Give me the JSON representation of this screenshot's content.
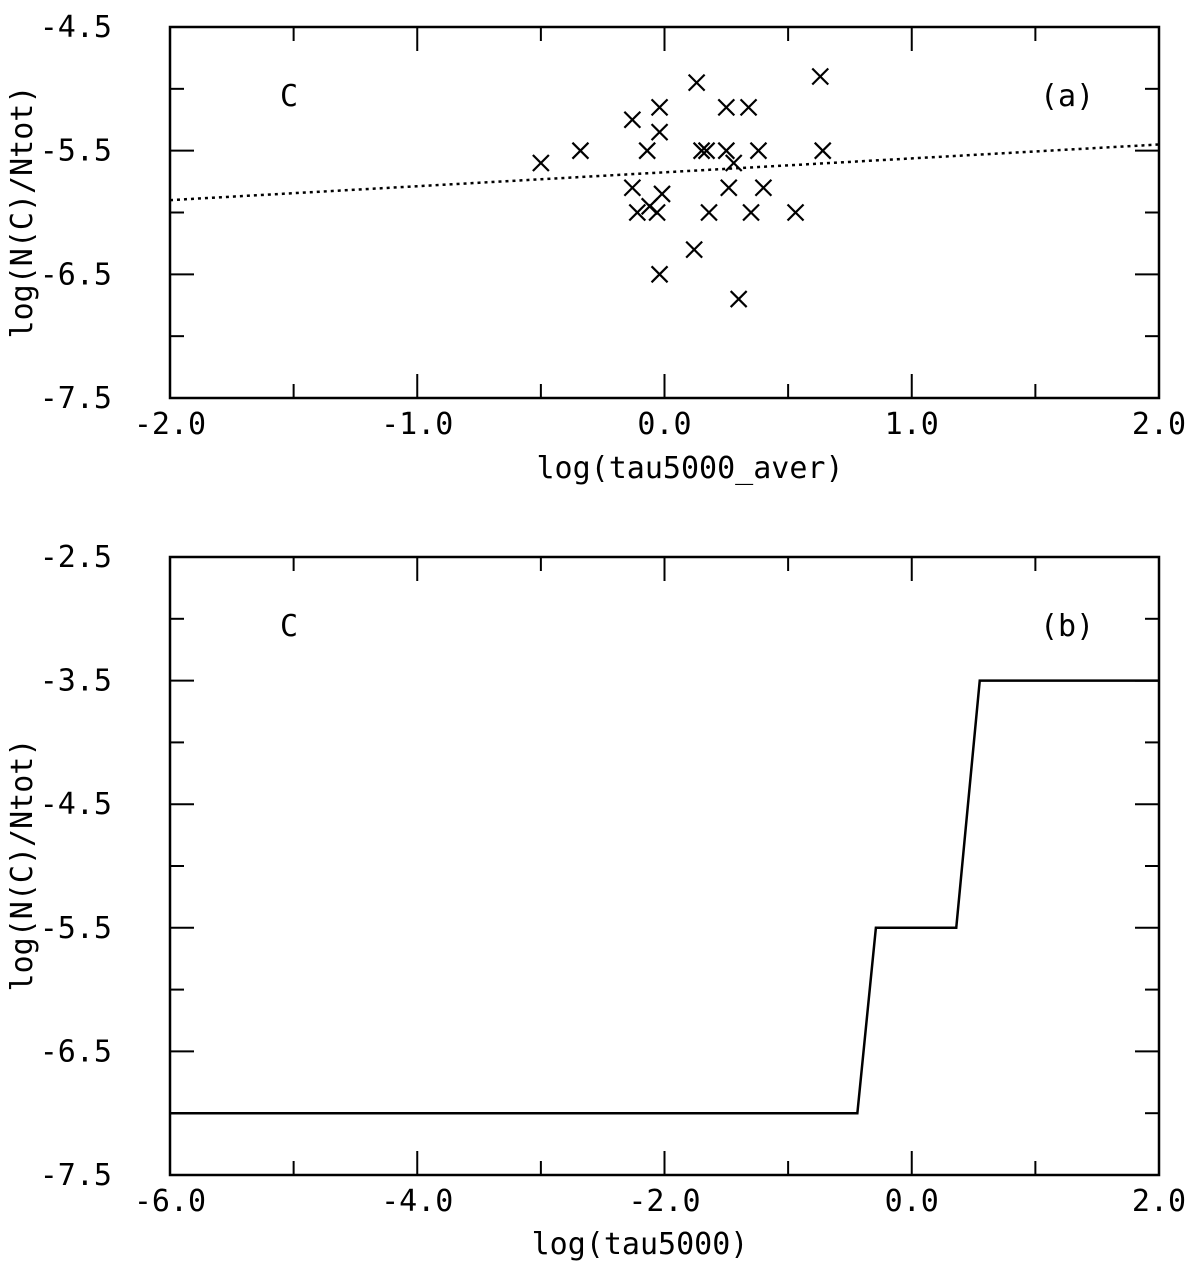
{
  "chart_data": [
    {
      "panel": "a",
      "type": "scatter",
      "element": "C",
      "panel_label": "(a)",
      "xlabel": "log(tau5000_aver)",
      "ylabel": "log(N(C)/Ntot)",
      "xlim": [
        -2.0,
        2.0
      ],
      "ylim": [
        -7.5,
        -4.5
      ],
      "xticks": [
        "-2.0",
        "-1.0",
        "0.0",
        "1.0",
        "2.0"
      ],
      "yticks": [
        "-4.5",
        "-5.5",
        "-6.5",
        "-7.5"
      ],
      "grid": false,
      "series": [
        {
          "marker": "x",
          "points": [
            [
              -0.5,
              -5.6
            ],
            [
              -0.34,
              -5.5
            ],
            [
              -0.13,
              -5.25
            ],
            [
              -0.13,
              -5.8
            ],
            [
              -0.11,
              -6.0
            ],
            [
              -0.07,
              -5.5
            ],
            [
              -0.06,
              -5.95
            ],
            [
              -0.03,
              -6.0
            ],
            [
              -0.02,
              -5.15
            ],
            [
              -0.02,
              -5.35
            ],
            [
              -0.02,
              -6.5
            ],
            [
              -0.01,
              -5.85
            ],
            [
              0.12,
              -6.3
            ],
            [
              0.13,
              -4.95
            ],
            [
              0.15,
              -5.5
            ],
            [
              0.17,
              -5.5
            ],
            [
              0.18,
              -6.0
            ],
            [
              0.25,
              -5.15
            ],
            [
              0.25,
              -5.5
            ],
            [
              0.26,
              -5.8
            ],
            [
              0.28,
              -5.6
            ],
            [
              0.3,
              -6.7
            ],
            [
              0.34,
              -5.15
            ],
            [
              0.35,
              -6.0
            ],
            [
              0.38,
              -5.5
            ],
            [
              0.4,
              -5.8
            ],
            [
              0.53,
              -6.0
            ],
            [
              0.63,
              -4.9
            ],
            [
              0.64,
              -5.5
            ]
          ]
        },
        {
          "type": "line",
          "style": "dotted",
          "points": [
            [
              -2.0,
              -5.9
            ],
            [
              2.0,
              -5.45
            ]
          ]
        }
      ]
    },
    {
      "panel": "b",
      "type": "line",
      "element": "C",
      "panel_label": "(b)",
      "xlabel": "log(tau5000)",
      "ylabel": "log(N(C)/Ntot)",
      "xlim": [
        -6.0,
        2.0
      ],
      "ylim": [
        -7.5,
        -2.5
      ],
      "xticks": [
        "-6.0",
        "-4.0",
        "-2.0",
        "0.0",
        "2.0"
      ],
      "yticks": [
        "-2.5",
        "-3.5",
        "-4.5",
        "-5.5",
        "-6.5",
        "-7.5"
      ],
      "grid": false,
      "series": [
        {
          "style": "solid",
          "points": [
            [
              -6.0,
              -7.0
            ],
            [
              -0.44,
              -7.0
            ],
            [
              -0.29,
              -5.5
            ],
            [
              0.36,
              -5.5
            ],
            [
              0.55,
              -3.5
            ],
            [
              2.0,
              -3.5
            ]
          ]
        }
      ]
    }
  ]
}
